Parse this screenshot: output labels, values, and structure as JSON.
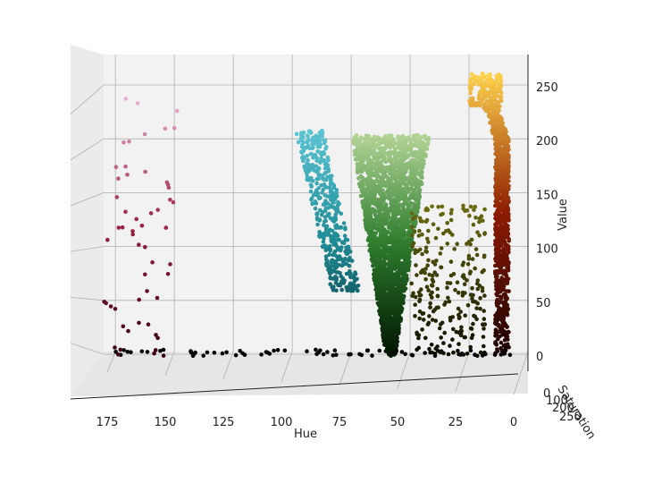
{
  "chart_data": {
    "type": "scatter",
    "projection": "3d",
    "title": "",
    "xlabel": "Hue",
    "ylabel": "Saturation",
    "zlabel": "Value",
    "xlim": [
      0,
      180
    ],
    "zlim": [
      0,
      260
    ],
    "x_ticks": [
      "0",
      "25",
      "50",
      "75",
      "100",
      "125",
      "150",
      "175"
    ],
    "y_ticks": [
      "0",
      "100",
      "200",
      "250"
    ],
    "z_ticks": [
      "0",
      "50",
      "100",
      "150",
      "200",
      "250"
    ],
    "grid": true,
    "legend": "none",
    "clusters": [
      {
        "name_hint": "red-orange",
        "hue_range": [
          0,
          25
        ],
        "value_range": [
          0,
          260
        ],
        "color_low": "#1a0000",
        "color_mid": "#8b1a00",
        "color_high": "#ffd24a"
      },
      {
        "name_hint": "green",
        "hue_range": [
          42,
          58
        ],
        "value_range": [
          0,
          210
        ],
        "color_low": "#001400",
        "color_mid": "#2e7d2e",
        "color_high": "#b8d89a"
      },
      {
        "name_hint": "cyan-teal",
        "hue_range": [
          78,
          95
        ],
        "value_range": [
          60,
          215
        ],
        "color_low": "#05323a",
        "color_mid": "#1f8c96",
        "color_high": "#5fc8d8"
      },
      {
        "name_hint": "magenta-pink",
        "hue_range": [
          150,
          178
        ],
        "value_range": [
          0,
          240
        ],
        "color_low": "#3a0010",
        "color_mid": "#9a2040",
        "color_high": "#e8b0d8"
      }
    ]
  }
}
